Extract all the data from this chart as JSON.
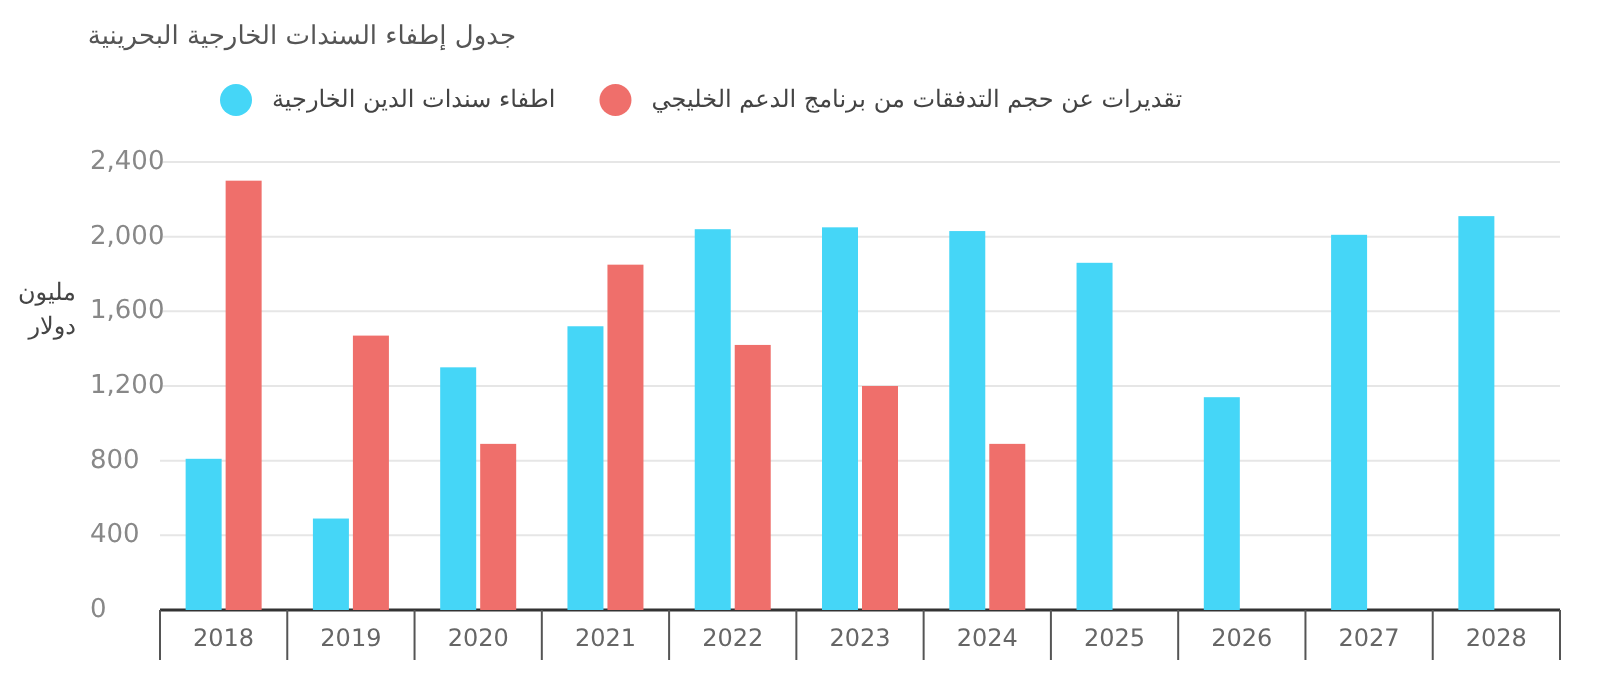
{
  "chart_data": {
    "type": "bar",
    "title": "جدول إطفاء السندات الخارجية البحرينية",
    "ylabel": "مليون دولار",
    "categories": [
      "2018",
      "2019",
      "2020",
      "2021",
      "2022",
      "2023",
      "2024",
      "2025",
      "2026",
      "2027",
      "2028"
    ],
    "series": [
      {
        "name": "اطفاء سندات الدين الخارجية",
        "color": "#45d6f7",
        "values": [
          810,
          490,
          1300,
          1520,
          2040,
          2050,
          2030,
          1860,
          1140,
          2010,
          2110
        ]
      },
      {
        "name": "تقديرات عن حجم التدفقات من برنامج الدعم الخليجي",
        "color": "#ef6f6b",
        "values": [
          2300,
          1470,
          890,
          1850,
          1420,
          1200,
          890,
          null,
          null,
          null,
          null
        ]
      }
    ],
    "ylim": [
      0,
      2400
    ],
    "yticks": [
      0,
      400,
      800,
      {
        "value": 1200,
        "label": "1,200"
      },
      {
        "value": 1600,
        "label": "1,600"
      },
      {
        "value": 2000,
        "label": "2,000"
      },
      {
        "value": 2400,
        "label": "2,400"
      }
    ],
    "grid": "y",
    "legend": "top left"
  }
}
